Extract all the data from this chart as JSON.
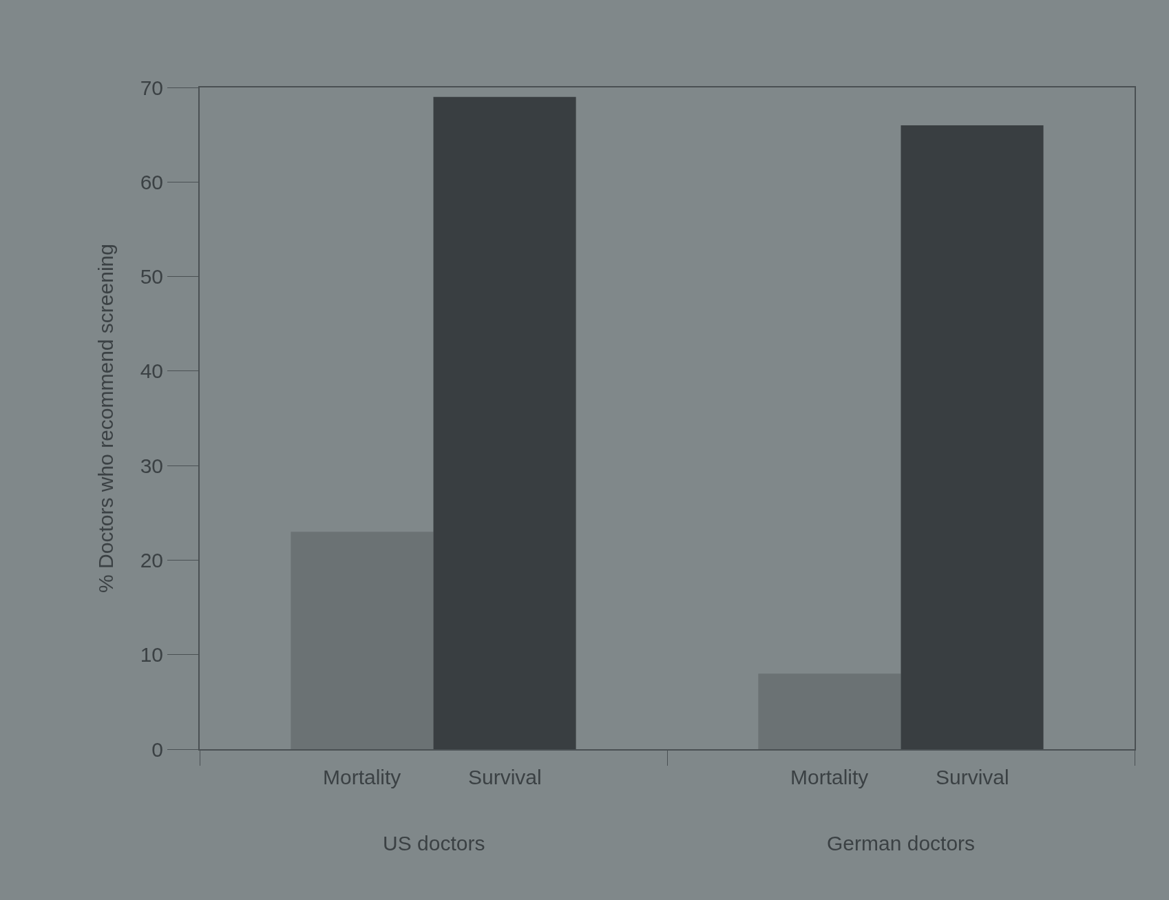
{
  "chart_data": {
    "type": "bar",
    "categories": [
      "US doctors",
      "German doctors"
    ],
    "series": [
      {
        "name": "Mortality",
        "color": "#6b7274",
        "values": [
          23,
          8
        ]
      },
      {
        "name": "Survival",
        "color": "#393e41",
        "values": [
          69,
          66
        ]
      }
    ],
    "ylabel": "% Doctors who recommend screening",
    "ylim": [
      0,
      70
    ],
    "yticks": [
      0,
      10,
      20,
      30,
      40,
      50,
      60,
      70
    ],
    "grid": false,
    "legend": false
  }
}
